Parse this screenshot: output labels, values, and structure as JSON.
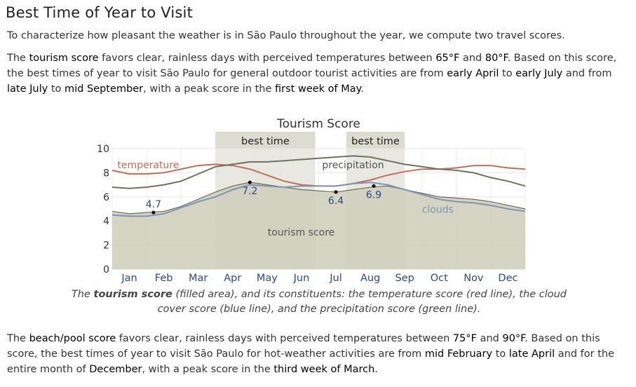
{
  "section_title": "Best Time of Year to Visit",
  "intro": "To characterize how pleasant the weather is in São Paulo throughout the year, we compute two travel scores.",
  "tourism_paragraph": [
    {
      "t": "The ",
      "h": false
    },
    {
      "t": "tourism score",
      "h": true
    },
    {
      "t": " favors clear, rainless days with perceived temperatures between ",
      "h": false
    },
    {
      "t": "65°F",
      "h": true
    },
    {
      "t": " and ",
      "h": false
    },
    {
      "t": "80°F",
      "h": true
    },
    {
      "t": ". Based on this score, the best times of year to visit São Paulo for general outdoor tourist activities are from ",
      "h": false
    },
    {
      "t": "early April",
      "h": true
    },
    {
      "t": " to ",
      "h": false
    },
    {
      "t": "early July",
      "h": true
    },
    {
      "t": " and from ",
      "h": false
    },
    {
      "t": "late July",
      "h": true
    },
    {
      "t": " to ",
      "h": false
    },
    {
      "t": "mid September",
      "h": true
    },
    {
      "t": ", with a peak score in the ",
      "h": false
    },
    {
      "t": "first week of May",
      "h": true
    },
    {
      "t": ".",
      "h": false
    }
  ],
  "caption": [
    {
      "t": "The ",
      "h": false
    },
    {
      "t": "tourism score",
      "h": true
    },
    {
      "t": " (filled area), and its constituents: the temperature score (red line), the cloud cover score (blue line), and the precipitation score (green line).",
      "h": false
    }
  ],
  "beach_paragraph": [
    {
      "t": "The ",
      "h": false
    },
    {
      "t": "beach/pool score",
      "h": true
    },
    {
      "t": " favors clear, rainless days with perceived temperatures between ",
      "h": false
    },
    {
      "t": "75°F",
      "h": true
    },
    {
      "t": " and ",
      "h": false
    },
    {
      "t": "90°F",
      "h": true
    },
    {
      "t": ". Based on this score, the best times of year to visit São Paulo for hot-weather activities are from ",
      "h": false
    },
    {
      "t": "mid February",
      "h": true
    },
    {
      "t": " to ",
      "h": false
    },
    {
      "t": "late April",
      "h": true
    },
    {
      "t": " and for the entire month of ",
      "h": false
    },
    {
      "t": "December",
      "h": true
    },
    {
      "t": ", with a peak score in the ",
      "h": false
    },
    {
      "t": "third week of March",
      "h": true
    },
    {
      "t": ".",
      "h": false
    }
  ],
  "chart_data": {
    "type": "area",
    "title": "Tourism Score",
    "ylim": [
      0,
      10
    ],
    "yticks": [
      0,
      2,
      4,
      6,
      8,
      10
    ],
    "grid": true,
    "months": [
      "Jan",
      "Feb",
      "Mar",
      "Apr",
      "May",
      "Jun",
      "Jul",
      "Aug",
      "Sep",
      "Oct",
      "Nov",
      "Dec"
    ],
    "x_range": [
      0,
      12
    ],
    "best_time_label": "best time",
    "best_time_periods": [
      [
        3.0,
        5.9
      ],
      [
        6.8,
        8.5
      ]
    ],
    "area_label": "tourism score",
    "series": [
      {
        "name": "temperature",
        "color": "#c0705a",
        "kind": "line",
        "x": [
          0,
          0.5,
          1,
          1.5,
          2,
          2.5,
          3,
          3.5,
          4,
          4.5,
          5,
          5.5,
          6,
          6.5,
          7,
          7.5,
          8,
          8.5,
          9,
          9.5,
          10,
          10.5,
          11,
          11.5,
          12
        ],
        "y": [
          8.2,
          7.9,
          7.9,
          8.0,
          8.3,
          8.6,
          8.7,
          8.6,
          8.3,
          7.8,
          7.3,
          7.0,
          6.9,
          6.9,
          7.1,
          7.4,
          7.8,
          8.1,
          8.3,
          8.3,
          8.4,
          8.6,
          8.6,
          8.4,
          8.3
        ]
      },
      {
        "name": "clouds",
        "color": "#7f95b5",
        "kind": "line",
        "x": [
          0,
          0.5,
          1,
          1.5,
          2,
          2.5,
          3,
          3.5,
          4,
          4.5,
          5,
          5.5,
          6,
          6.5,
          7,
          7.5,
          8,
          8.5,
          9,
          9.5,
          10,
          10.5,
          11,
          11.5,
          12
        ],
        "y": [
          4.5,
          4.4,
          4.4,
          4.6,
          5.1,
          5.6,
          6.0,
          6.6,
          7.0,
          6.9,
          6.8,
          6.9,
          6.9,
          6.9,
          7.1,
          7.2,
          7.0,
          6.6,
          6.2,
          5.8,
          5.6,
          5.5,
          5.3,
          5.0,
          4.8
        ]
      },
      {
        "name": "precipitation",
        "color": "#6d7262",
        "kind": "line",
        "x": [
          0,
          0.5,
          1,
          1.5,
          2,
          2.5,
          3,
          3.5,
          4,
          4.5,
          5,
          5.5,
          6,
          6.5,
          7,
          7.5,
          8,
          8.5,
          9,
          9.5,
          10,
          10.5,
          11,
          11.5,
          12
        ],
        "y": [
          6.8,
          6.7,
          6.8,
          7.0,
          7.3,
          7.9,
          8.5,
          8.7,
          8.9,
          8.9,
          9.0,
          9.1,
          9.2,
          9.3,
          9.4,
          9.3,
          9.0,
          8.7,
          8.5,
          8.3,
          8.2,
          8.0,
          7.6,
          7.3,
          6.9
        ]
      },
      {
        "name": "tourism score",
        "color": "#cfcdb9",
        "kind": "area",
        "x": [
          0,
          0.5,
          1,
          1.5,
          2,
          2.5,
          3,
          3.5,
          4,
          4.5,
          5,
          5.5,
          6,
          6.5,
          7,
          7.5,
          8,
          8.5,
          9,
          9.5,
          10,
          10.5,
          11,
          11.5,
          12
        ],
        "y": [
          4.8,
          4.6,
          4.7,
          4.8,
          5.2,
          5.8,
          6.4,
          6.9,
          7.2,
          7.0,
          6.8,
          6.6,
          6.5,
          6.4,
          6.6,
          6.8,
          6.9,
          6.6,
          6.3,
          6.0,
          5.9,
          5.8,
          5.6,
          5.3,
          5.0
        ]
      }
    ],
    "annotations": [
      {
        "x": 1.2,
        "value": 4.7,
        "label": "4.7",
        "pos": "above"
      },
      {
        "x": 4.0,
        "value": 7.2,
        "label": "7.2",
        "pos": "below"
      },
      {
        "x": 6.5,
        "value": 6.4,
        "label": "6.4",
        "pos": "below"
      },
      {
        "x": 7.6,
        "value": 6.9,
        "label": "6.9",
        "pos": "below"
      }
    ],
    "series_labels": [
      {
        "series": "temperature",
        "text": "temperature",
        "x": 0.15,
        "y": 8.6
      },
      {
        "series": "precipitation",
        "text": "precipitation",
        "x": 6.1,
        "y": 8.6
      },
      {
        "series": "clouds",
        "text": "clouds",
        "x": 9.0,
        "y": 4.9
      }
    ]
  }
}
